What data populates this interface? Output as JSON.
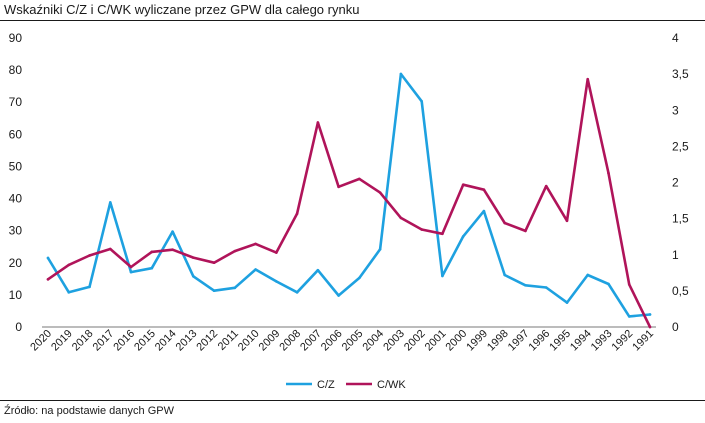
{
  "title": "Wskaźniki C/Z i C/WK wyliczane przez GPW dla całego rynku",
  "source": "Źródło: na podstawie danych GPW",
  "chart_data": {
    "type": "line",
    "categories": [
      "2020",
      "2019",
      "2018",
      "2017",
      "2016",
      "2015",
      "2014",
      "2013",
      "2012",
      "2011",
      "2010",
      "2009",
      "2008",
      "2007",
      "2006",
      "2005",
      "2004",
      "2003",
      "2002",
      "2001",
      "2000",
      "1999",
      "1998",
      "1997",
      "1996",
      "1995",
      "1994",
      "1993",
      "1992",
      "1991"
    ],
    "series": [
      {
        "name": "C/Z",
        "axis": "left",
        "color": "#1ea1e0",
        "values": [
          21.5,
          10.8,
          12.5,
          38.8,
          17.1,
          18.3,
          29.7,
          15.8,
          11.3,
          12.2,
          17.9,
          14.2,
          10.8,
          17.7,
          9.8,
          15.3,
          24.2,
          78.8,
          70.3,
          15.9,
          28.2,
          36.1,
          16.2,
          13.0,
          12.3,
          7.6,
          16.2,
          13.4,
          3.3,
          3.9
        ]
      },
      {
        "name": "C/WK",
        "axis": "right",
        "color": "#b0145a",
        "values": [
          0.66,
          0.86,
          0.99,
          1.08,
          0.83,
          1.04,
          1.07,
          0.96,
          0.89,
          1.05,
          1.15,
          1.03,
          1.57,
          2.83,
          1.94,
          2.05,
          1.86,
          1.51,
          1.35,
          1.29,
          1.97,
          1.9,
          1.44,
          1.33,
          1.95,
          1.47,
          3.43,
          2.13,
          0.59,
          0.0
        ]
      }
    ],
    "y_left": {
      "min": 0,
      "max": 90,
      "ticks": [
        "0",
        "10",
        "20",
        "30",
        "40",
        "50",
        "60",
        "70",
        "80",
        "90"
      ]
    },
    "y_right": {
      "min": 0,
      "max": 4,
      "ticks": [
        "0",
        "0,5",
        "1",
        "1,5",
        "2",
        "2,5",
        "3",
        "3,5",
        "4"
      ]
    },
    "grid": false,
    "legend": {
      "position": "bottom-center",
      "items": [
        "C/Z",
        "C/WK"
      ]
    }
  }
}
